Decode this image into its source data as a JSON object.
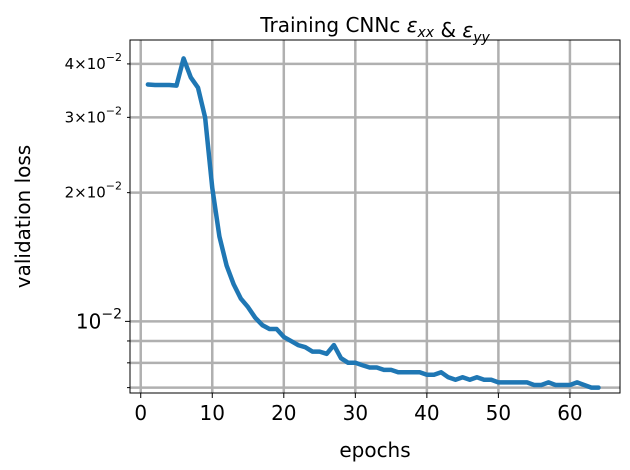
{
  "chart_data": {
    "type": "line",
    "title": "Training CNNc",
    "title_math": [
      {
        "sym": "ε",
        "sub": "xx"
      },
      {
        "sep": " & "
      },
      {
        "sym": "ε",
        "sub": "yy"
      }
    ],
    "xlabel": "epochs",
    "ylabel": "validation loss",
    "xlim": [
      -1.5,
      67
    ],
    "ylim": [
      0.0068,
      0.0455
    ],
    "yscale": "log",
    "grid": true,
    "x_ticks": [
      0,
      10,
      20,
      30,
      40,
      50,
      60
    ],
    "y_major_ticks": [
      {
        "value": 0.01,
        "mant": "10",
        "exp": "−2"
      }
    ],
    "y_minor_ticks": [
      {
        "value": 0.02,
        "mant": "2×10",
        "exp": "−2"
      },
      {
        "value": 0.03,
        "mant": "3×10",
        "exp": "−2"
      },
      {
        "value": 0.04,
        "mant": "4×10",
        "exp": "−2"
      }
    ],
    "y_minor_unlabeled": [
      0.007,
      0.008,
      0.009
    ],
    "line_color": "#1f77b4",
    "grid_color": "#b0b0b0",
    "series": [
      {
        "x": [
          1,
          2,
          3,
          4,
          5,
          6,
          7,
          8,
          9,
          10,
          11,
          12,
          13,
          14,
          15,
          16,
          17,
          18,
          19,
          20,
          21,
          22,
          23,
          24,
          25,
          26,
          27,
          28,
          29,
          30,
          31,
          32,
          33,
          34,
          35,
          36,
          37,
          38,
          39,
          40,
          41,
          42,
          43,
          44,
          45,
          46,
          47,
          48,
          49,
          50,
          51,
          52,
          53,
          54,
          55,
          56,
          57,
          58,
          59,
          60,
          61,
          62,
          63,
          64
        ],
        "y": [
          0.0358,
          0.0357,
          0.0357,
          0.0357,
          0.0356,
          0.0412,
          0.0372,
          0.0352,
          0.03,
          0.0205,
          0.0158,
          0.0135,
          0.0122,
          0.0113,
          0.0108,
          0.0102,
          0.0098,
          0.0096,
          0.0096,
          0.0092,
          0.009,
          0.0088,
          0.0087,
          0.0085,
          0.0085,
          0.0084,
          0.0088,
          0.0082,
          0.008,
          0.008,
          0.0079,
          0.0078,
          0.0078,
          0.0077,
          0.0077,
          0.0076,
          0.0076,
          0.0076,
          0.0076,
          0.0075,
          0.0075,
          0.0076,
          0.0074,
          0.0073,
          0.0074,
          0.0073,
          0.0074,
          0.0073,
          0.0073,
          0.0072,
          0.0072,
          0.0072,
          0.0072,
          0.0072,
          0.0071,
          0.0071,
          0.0072,
          0.0071,
          0.0071,
          0.0071,
          0.0072,
          0.0071,
          0.007,
          0.007
        ]
      }
    ]
  }
}
